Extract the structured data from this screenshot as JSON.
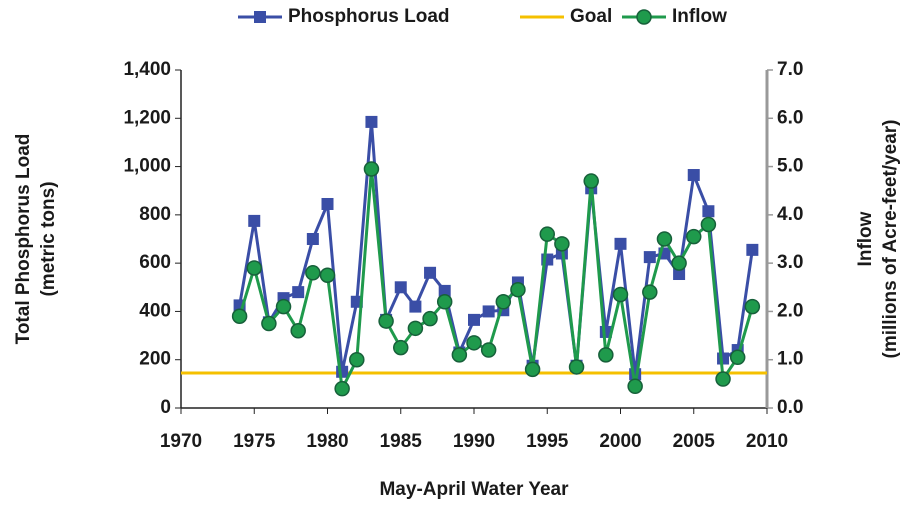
{
  "chart_data": {
    "type": "line",
    "xlabel": "May-April Water Year",
    "ylabel": [
      "Total Phosphorus Load",
      "(metric tons)"
    ],
    "y2label": [
      "Inflow",
      "(millions of Acre-feet/year)"
    ],
    "x": [
      1974,
      1975,
      1976,
      1977,
      1978,
      1979,
      1980,
      1981,
      1982,
      1983,
      1984,
      1985,
      1986,
      1987,
      1988,
      1989,
      1990,
      1991,
      1992,
      1993,
      1994,
      1995,
      1996,
      1997,
      1998,
      1999,
      2000,
      2001,
      2002,
      2003,
      2004,
      2005,
      2006,
      2007,
      2008,
      2009
    ],
    "series": [
      {
        "name": "Phosphorus Load",
        "color": "#3a4ea6",
        "marker": "square",
        "values": [
          425,
          775,
          355,
          455,
          480,
          700,
          845,
          150,
          440,
          1185,
          365,
          500,
          420,
          560,
          485,
          230,
          365,
          400,
          405,
          520,
          175,
          615,
          640,
          175,
          910,
          315,
          680,
          140,
          625,
          640,
          555,
          965,
          815,
          205,
          240,
          655
        ]
      },
      {
        "name": "Inflow",
        "color": "#1f9a4c",
        "marker": "circle",
        "axis": "y2",
        "values": [
          1.9,
          2.9,
          1.75,
          2.1,
          1.6,
          2.8,
          2.75,
          0.4,
          1.0,
          4.95,
          1.8,
          1.25,
          1.65,
          1.85,
          2.2,
          1.1,
          1.35,
          1.2,
          2.2,
          2.45,
          0.8,
          3.6,
          3.4,
          0.85,
          4.7,
          1.1,
          2.35,
          0.45,
          2.4,
          3.5,
          3.0,
          3.55,
          3.8,
          0.6,
          1.05,
          2.1
        ]
      }
    ],
    "goal": {
      "name": "Goal",
      "value": 145,
      "color": "#f5c000"
    },
    "xlim": [
      1970,
      2010
    ],
    "xticks": [
      1970,
      1975,
      1980,
      1985,
      1990,
      1995,
      2000,
      2005,
      2010
    ],
    "ylim": [
      0,
      1400
    ],
    "yticks": [
      0,
      200,
      400,
      600,
      800,
      {
        "value": 1000,
        "label": "1,000"
      },
      {
        "value": 1200,
        "label": "1,200"
      },
      {
        "value": 1400,
        "label": "1,400"
      }
    ],
    "y2lim": [
      0,
      7
    ],
    "y2ticks": [
      {
        "value": 0,
        "label": "0.0"
      },
      {
        "value": 1,
        "label": "1.0"
      },
      {
        "value": 2,
        "label": "2.0"
      },
      {
        "value": 3,
        "label": "3.0"
      },
      {
        "value": 4,
        "label": "4.0"
      },
      {
        "value": 5,
        "label": "5.0"
      },
      {
        "value": 6,
        "label": "6.0"
      },
      {
        "value": 7,
        "label": "7.0"
      }
    ]
  }
}
